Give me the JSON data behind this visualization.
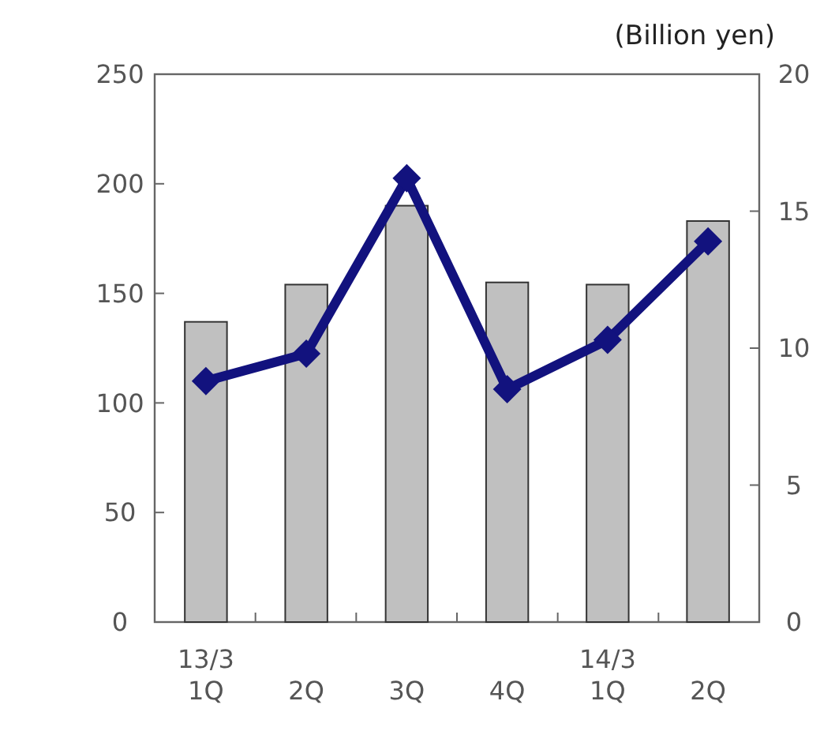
{
  "chart_data": {
    "type": "bar",
    "categories": [
      "13/3\n1Q",
      "2Q",
      "3Q",
      "4Q",
      "14/3\n1Q",
      "2Q"
    ],
    "series": [
      {
        "color": "#c0c0c0",
        "values": [
          137,
          154,
          190,
          155,
          154,
          183
        ]
      },
      {
        "type": "line",
        "axis": "y2",
        "color": "#12127e",
        "marker": "diamond",
        "values": [
          8.8,
          9.8,
          16.2,
          8.5,
          10.3,
          13.9
        ]
      }
    ],
    "ylim": [
      0,
      250
    ],
    "yticks": [
      0,
      50,
      100,
      150,
      200,
      250
    ],
    "y2lim": [
      0,
      20
    ],
    "y2ticks": [
      0,
      5,
      10,
      15,
      20
    ],
    "annotations": [
      "(Billion yen)"
    ],
    "grid": false
  }
}
